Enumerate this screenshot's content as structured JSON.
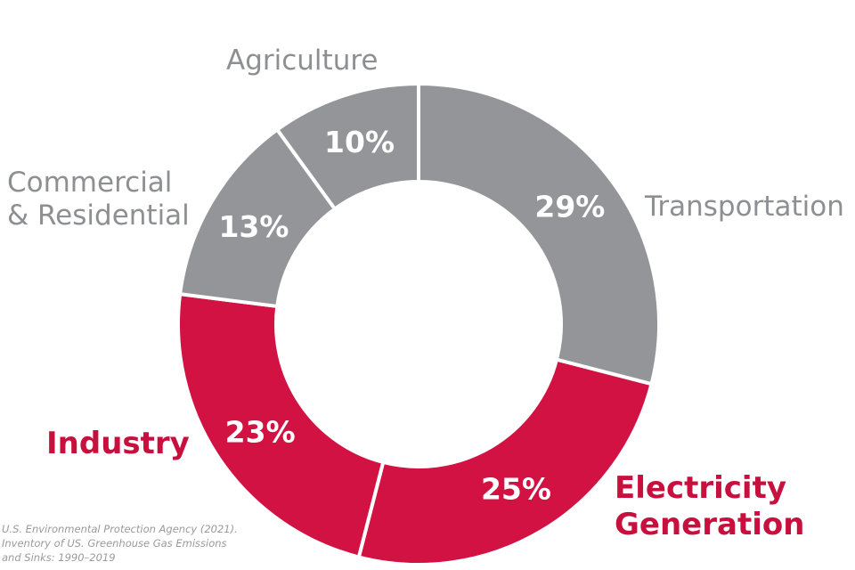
{
  "chart_data": {
    "type": "pie",
    "subtype": "donut",
    "categories": [
      "Transportation",
      "Electricity Generation",
      "Industry",
      "Commercial & Residential",
      "Agriculture"
    ],
    "values": [
      29,
      25,
      23,
      13,
      10
    ],
    "value_labels": [
      "29%",
      "25%",
      "23%",
      "13%",
      "10%"
    ],
    "label_lines": [
      [
        "Transportation"
      ],
      [
        "Electricity",
        "Generation"
      ],
      [
        "Industry"
      ],
      [
        "Commercial",
        "& Residential"
      ],
      [
        "Agriculture"
      ]
    ],
    "colors": [
      "#939598",
      "#d11242",
      "#d11242",
      "#939598",
      "#939598"
    ],
    "label_colors": [
      "#8e8f92",
      "#c8103e",
      "#c8103e",
      "#8e8f92",
      "#8e8f92"
    ],
    "title": "",
    "legend": "labels-outside"
  },
  "source": {
    "lines": [
      "U.S. Environmental Protection Agency (2021).",
      "Inventory of US. Greenhouse Gas Emissions",
      "and Sinks: 1990–2019"
    ]
  }
}
